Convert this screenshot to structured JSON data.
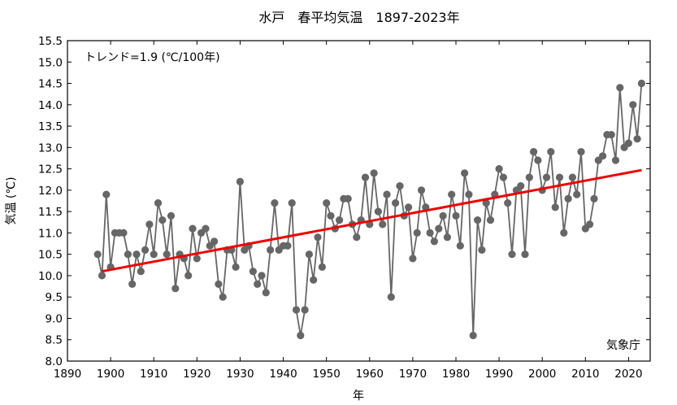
{
  "chart_data": {
    "type": "line",
    "title": "水戸　春平均気温　1897-2023年",
    "xlabel": "年",
    "ylabel": "気温 (℃)",
    "annotation": "トレンド=1.9 (℃/100年)",
    "source": "気象庁",
    "xlim": [
      1890,
      2025
    ],
    "ylim": [
      8.0,
      15.5
    ],
    "xticks": [
      "1890",
      "1900",
      "1910",
      "1920",
      "1930",
      "1940",
      "1950",
      "1960",
      "1970",
      "1980",
      "1990",
      "2000",
      "2010",
      "2020"
    ],
    "yticks": [
      "8.0",
      "8.5",
      "9.0",
      "9.5",
      "10.0",
      "10.5",
      "11.0",
      "11.5",
      "12.0",
      "12.5",
      "13.0",
      "13.5",
      "14.0",
      "14.5",
      "15.0",
      "15.5"
    ],
    "grid": false,
    "series": [
      {
        "color": "#666666",
        "x": [
          1897,
          1898,
          1899,
          1900,
          1901,
          1902,
          1903,
          1904,
          1905,
          1906,
          1907,
          1908,
          1909,
          1910,
          1911,
          1912,
          1913,
          1914,
          1915,
          1916,
          1917,
          1918,
          1919,
          1920,
          1921,
          1922,
          1923,
          1924,
          1925,
          1926,
          1927,
          1928,
          1929,
          1930,
          1931,
          1932,
          1933,
          1934,
          1935,
          1936,
          1937,
          1938,
          1939,
          1940,
          1941,
          1942,
          1943,
          1944,
          1945,
          1946,
          1947,
          1948,
          1949,
          1950,
          1951,
          1952,
          1953,
          1954,
          1955,
          1956,
          1957,
          1958,
          1959,
          1960,
          1961,
          1962,
          1963,
          1964,
          1965,
          1966,
          1967,
          1968,
          1969,
          1970,
          1971,
          1972,
          1973,
          1974,
          1975,
          1976,
          1977,
          1978,
          1979,
          1980,
          1981,
          1982,
          1983,
          1984,
          1985,
          1986,
          1987,
          1988,
          1989,
          1990,
          1991,
          1992,
          1993,
          1994,
          1995,
          1996,
          1997,
          1998,
          1999,
          2000,
          2001,
          2002,
          2003,
          2004,
          2005,
          2006,
          2007,
          2008,
          2009,
          2010,
          2011,
          2012,
          2013,
          2014,
          2015,
          2016,
          2017,
          2018,
          2019,
          2020,
          2021,
          2022,
          2023
        ],
        "y": [
          10.5,
          10.0,
          11.9,
          10.2,
          11.0,
          11.0,
          11.0,
          10.5,
          9.8,
          10.5,
          10.1,
          10.6,
          11.2,
          10.5,
          11.7,
          11.3,
          10.5,
          11.4,
          9.7,
          10.5,
          10.4,
          10.0,
          11.1,
          10.4,
          11.0,
          11.1,
          10.7,
          10.8,
          9.8,
          9.5,
          10.6,
          10.6,
          10.2,
          12.2,
          10.6,
          10.7,
          10.1,
          9.8,
          10.0,
          9.6,
          10.6,
          11.7,
          10.6,
          10.7,
          10.7,
          11.7,
          9.2,
          8.6,
          9.2,
          10.5,
          9.9,
          10.9,
          10.2,
          11.7,
          11.4,
          11.1,
          11.3,
          11.8,
          11.8,
          11.2,
          10.9,
          11.3,
          12.3,
          11.2,
          12.4,
          11.5,
          11.2,
          11.9,
          9.5,
          11.7,
          12.1,
          11.4,
          11.6,
          10.4,
          11.0,
          12.0,
          11.6,
          11.0,
          10.8,
          11.1,
          11.4,
          10.9,
          11.9,
          11.4,
          10.7,
          12.4,
          11.9,
          8.6,
          11.3,
          10.6,
          11.7,
          11.3,
          11.9,
          12.5,
          12.3,
          11.7,
          10.5,
          12.0,
          12.1,
          10.5,
          12.3,
          12.9,
          12.7,
          12.0,
          12.3,
          12.9,
          11.6,
          12.3,
          11.0,
          11.8,
          12.3,
          11.9,
          12.9,
          11.1,
          11.2,
          11.8,
          12.7,
          12.8,
          13.3,
          13.3,
          12.7,
          14.4,
          13.0,
          13.1,
          14.0,
          13.2,
          14.5
        ]
      }
    ],
    "trend": {
      "color": "#ee0000",
      "x": [
        1898,
        2023
      ],
      "y": [
        10.1,
        12.47
      ]
    }
  }
}
